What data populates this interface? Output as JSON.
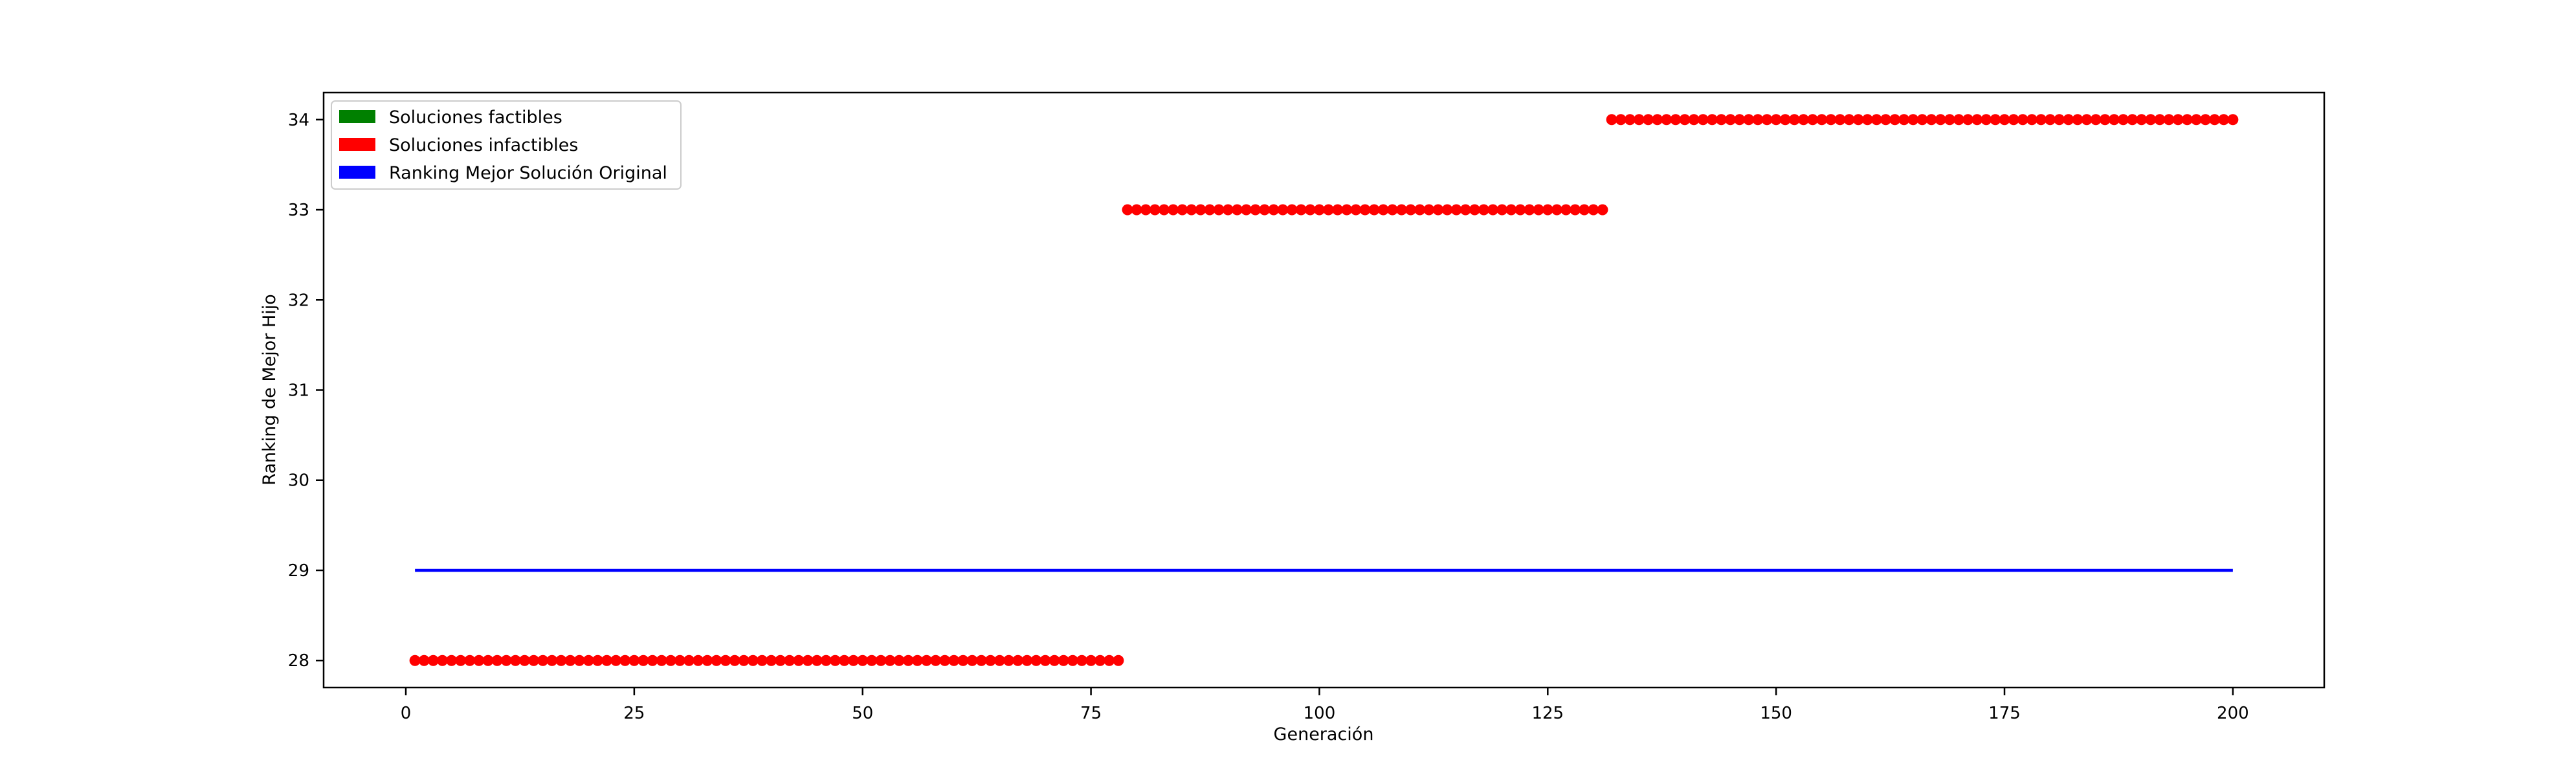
{
  "chart_data": {
    "type": "scatter",
    "title": "",
    "xlabel": "Generación",
    "ylabel": "Ranking de Mejor Hijo",
    "xlim": [
      -9,
      210
    ],
    "ylim": [
      27.7,
      34.3
    ],
    "xticks": [
      0,
      25,
      50,
      75,
      100,
      125,
      150,
      175,
      200
    ],
    "yticks": [
      28,
      29,
      30,
      31,
      32,
      33,
      34
    ],
    "grid": false,
    "legend_position": "top-left",
    "legend": [
      {
        "label": "Soluciones factibles",
        "color": "#008000"
      },
      {
        "label": "Soluciones infactibles",
        "color": "#ff0000"
      },
      {
        "label": "Ranking Mejor Solución Original",
        "color": "#0000ff"
      }
    ],
    "series": [
      {
        "kind": "points",
        "color": "#ff0000",
        "segments": [
          {
            "x_start": 1,
            "x_end": 78,
            "y": 28
          },
          {
            "x_start": 79,
            "x_end": 131,
            "y": 33
          },
          {
            "x_start": 132,
            "x_end": 200,
            "y": 34
          }
        ]
      },
      {
        "kind": "line",
        "color": "#0000ff",
        "x": [
          1,
          200
        ],
        "y": [
          29,
          29
        ]
      }
    ]
  }
}
